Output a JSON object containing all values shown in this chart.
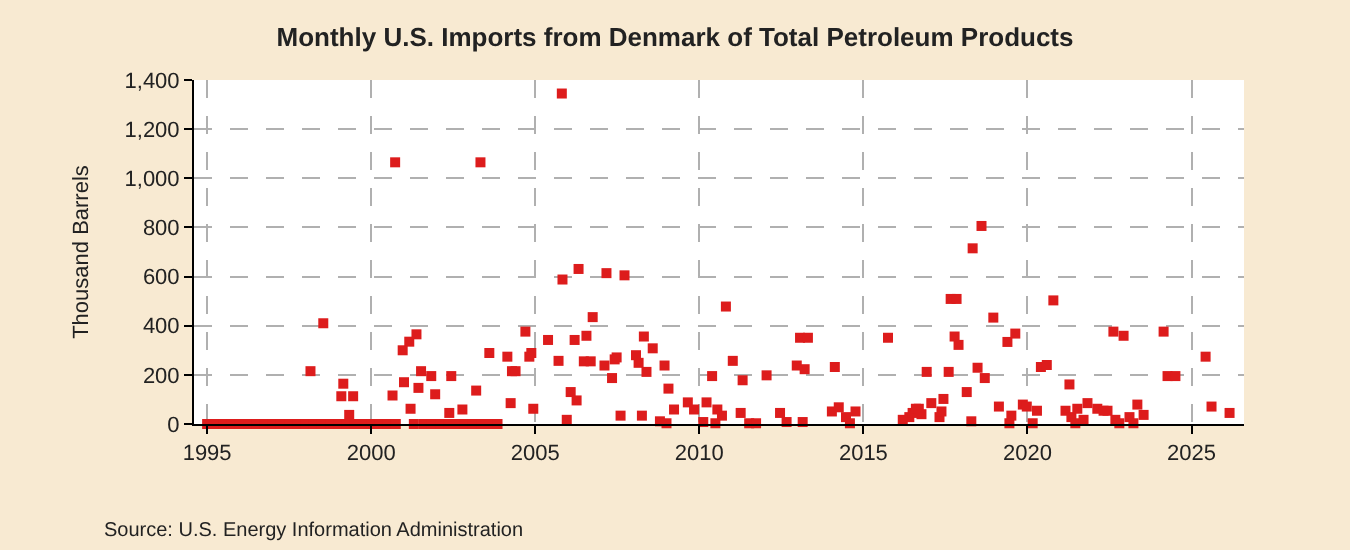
{
  "chart_data": {
    "type": "scatter",
    "title": "Monthly U.S. Imports from Denmark of Total Petroleum Products",
    "ylabel": "Thousand Barrels",
    "annotations": [
      "Source: U.S. Energy Information Administration"
    ],
    "x": [
      1995.0,
      1995.25,
      1995.5,
      1995.75,
      1996.0,
      1996.25,
      1996.5,
      1996.75,
      1997.0,
      1997.25,
      1997.5,
      1997.75,
      1998.0,
      1998.25,
      1998.5,
      1998.75,
      1999.0,
      1999.25,
      1999.5,
      1999.75,
      2000.0,
      2000.25,
      2000.5,
      2000.75,
      2001.3,
      2001.6,
      2001.85,
      2002.1,
      2002.35,
      2002.6,
      2002.85,
      2003.1,
      2003.35,
      2003.6,
      2003.85,
      1998.15,
      1998.54,
      1999.09,
      1999.15,
      1999.33,
      1999.45,
      2000.65,
      2000.73,
      2000.96,
      2001.0,
      2001.16,
      2001.2,
      2001.38,
      2001.44,
      2001.52,
      2001.83,
      2001.95,
      2002.38,
      2002.44,
      2002.78,
      2003.2,
      2003.33,
      2003.6,
      2004.15,
      2004.25,
      2004.29,
      2004.4,
      2004.7,
      2004.82,
      2004.88,
      2004.94,
      2005.39,
      2005.71,
      2005.81,
      2005.83,
      2005.96,
      2006.08,
      2006.2,
      2006.26,
      2006.32,
      2006.48,
      2006.56,
      2006.69,
      2006.75,
      2007.11,
      2007.17,
      2007.34,
      2007.42,
      2007.48,
      2007.6,
      2007.72,
      2008.07,
      2008.15,
      2008.25,
      2008.31,
      2008.39,
      2008.58,
      2008.8,
      2008.94,
      2009.0,
      2009.06,
      2009.23,
      2009.65,
      2009.84,
      2010.12,
      2010.22,
      2010.39,
      2010.49,
      2010.55,
      2010.69,
      2010.81,
      2011.02,
      2011.26,
      2011.32,
      2011.52,
      2011.73,
      2012.05,
      2012.46,
      2012.66,
      2012.97,
      2013.07,
      2013.15,
      2013.21,
      2013.31,
      2014.04,
      2014.13,
      2014.25,
      2014.47,
      2014.59,
      2014.76,
      2015.75,
      2016.2,
      2016.4,
      2016.5,
      2016.6,
      2016.69,
      2016.77,
      2016.93,
      2017.07,
      2017.32,
      2017.38,
      2017.44,
      2017.6,
      2017.66,
      2017.78,
      2017.84,
      2017.9,
      2018.15,
      2018.29,
      2018.33,
      2018.48,
      2018.6,
      2018.7,
      2018.96,
      2019.13,
      2019.39,
      2019.45,
      2019.51,
      2019.63,
      2019.86,
      2019.98,
      2020.16,
      2020.29,
      2020.41,
      2020.59,
      2020.79,
      2021.16,
      2021.28,
      2021.34,
      2021.46,
      2021.52,
      2021.71,
      2021.83,
      2022.13,
      2022.32,
      2022.44,
      2022.62,
      2022.68,
      2022.8,
      2022.93,
      2023.11,
      2023.23,
      2023.35,
      2023.54,
      2024.15,
      2024.27,
      2024.51,
      2025.43,
      2025.61,
      2026.16
    ],
    "series": [
      {
        "color": "#dd1c1c",
        "values": [
          0,
          0,
          0,
          0,
          0,
          0,
          0,
          0,
          0,
          0,
          0,
          0,
          0,
          0,
          0,
          0,
          0,
          0,
          0,
          0,
          0,
          0,
          0,
          0,
          0,
          0,
          0,
          0,
          0,
          0,
          0,
          0,
          0,
          0,
          0,
          215,
          410,
          113,
          164,
          37,
          113,
          116,
          1065,
          300,
          170,
          335,
          62,
          365,
          147,
          215,
          195,
          121,
          45,
          195,
          59,
          136,
          1065,
          289,
          274,
          85,
          215,
          215,
          376,
          274,
          289,
          62,
          342,
          257,
          1345,
          588,
          17,
          130,
          342,
          96,
          631,
          255,
          359,
          255,
          435,
          238,
          614,
          187,
          263,
          271,
          34,
          605,
          280,
          249,
          34,
          356,
          212,
          308,
          11,
          238,
          3,
          144,
          59,
          88,
          59,
          8,
          88,
          195,
          3,
          59,
          34,
          478,
          257,
          45,
          178,
          3,
          3,
          198,
          45,
          8,
          238,
          351,
          8,
          223,
          351,
          51,
          232,
          68,
          28,
          3,
          51,
          351,
          17,
          28,
          45,
          62,
          62,
          40,
          212,
          85,
          28,
          51,
          102,
          212,
          509,
          356,
          509,
          322,
          130,
          11,
          715,
          229,
          806,
          187,
          433,
          71,
          334,
          3,
          34,
          368,
          79,
          71,
          3,
          54,
          232,
          240,
          503,
          54,
          161,
          28,
          3,
          62,
          17,
          85,
          62,
          54,
          54,
          376,
          17,
          3,
          359,
          28,
          3,
          79,
          37,
          376,
          195,
          195,
          274,
          71,
          45
        ]
      }
    ],
    "marker": "square",
    "xlim": [
      1994.6,
      2026.6
    ],
    "xticks": [
      1995,
      2000,
      2005,
      2010,
      2015,
      2020,
      2025
    ],
    "ylim": [
      0,
      1400
    ],
    "yticks": [
      0,
      200,
      400,
      600,
      800,
      {
        "value": 1000,
        "label": "1,000"
      },
      {
        "value": 1200,
        "label": "1,200"
      },
      {
        "value": 1400,
        "label": "1,400"
      }
    ],
    "grid": true
  }
}
